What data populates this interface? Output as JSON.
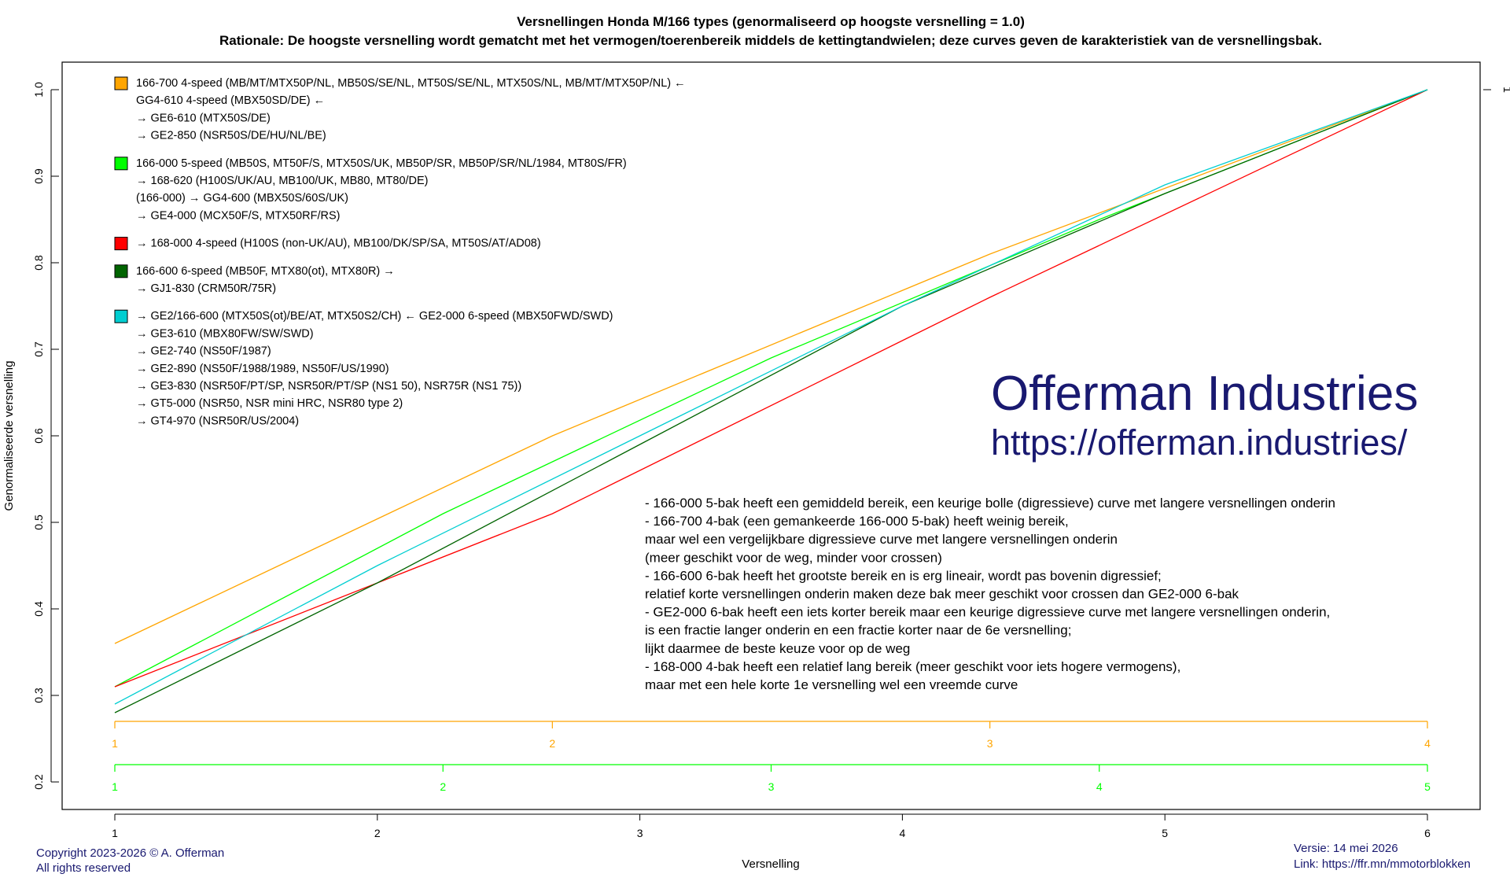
{
  "chart_data": {
    "type": "line",
    "title": "Versnellingen Honda M/166 types (genormaliseerd op hoogste versnelling = 1.0)",
    "subtitle": "Rationale: De hoogste versnelling wordt gematcht met het vermogen/toerenbereik middels de kettingtandwielen; deze curves geven de karakteristiek van de versnellingsbak.",
    "xlabel": "Versnelling",
    "ylabel": "Genormaliseerde versnelling",
    "xlim": [
      1,
      6
    ],
    "ylim": [
      0.2,
      1.0
    ],
    "x_ticks": [
      "1",
      "2",
      "3",
      "4",
      "5",
      "6"
    ],
    "y_ticks": [
      "0.2",
      "0.3",
      "0.4",
      "0.5",
      "0.6",
      "0.7",
      "0.8",
      "0.9",
      "1.0"
    ],
    "right_tick": "1",
    "grid": false,
    "legend_position": "top-left",
    "series": [
      {
        "color": "#FFA500",
        "x": [
          1,
          2.667,
          4.333,
          6
        ],
        "y": [
          0.36,
          0.6,
          0.81,
          1.0
        ]
      },
      {
        "color": "#00FF00",
        "x": [
          1,
          2.25,
          3.5,
          4.75,
          6
        ],
        "y": [
          0.31,
          0.51,
          0.69,
          0.85,
          1.0
        ]
      },
      {
        "color": "#FF0000",
        "x": [
          1,
          2.667,
          4.333,
          6
        ],
        "y": [
          0.31,
          0.51,
          0.76,
          1.0
        ]
      },
      {
        "color": "#006400",
        "x": [
          1,
          2,
          3,
          4,
          5,
          6
        ],
        "y": [
          0.28,
          0.43,
          0.59,
          0.75,
          0.88,
          1.0
        ]
      },
      {
        "color": "#00CED1",
        "x": [
          1,
          2,
          3,
          4,
          5,
          6
        ],
        "y": [
          0.29,
          0.45,
          0.6,
          0.75,
          0.89,
          1.0
        ]
      }
    ],
    "gear_scales": [
      {
        "color": "#FFA500",
        "y": 0.27,
        "labels": [
          "1",
          "2",
          "3",
          "4"
        ]
      },
      {
        "color": "#00FF00",
        "y": 0.22,
        "labels": [
          "1",
          "2",
          "3",
          "4",
          "5"
        ]
      }
    ],
    "legend": [
      {
        "color": "#FFA500",
        "lines": [
          "166-700 4-speed (MB/MT/MTX50P/NL, MB50S/SE/NL, MT50S/SE/NL, MTX50S/NL, MB/MT/MTX50P/NL) ←",
          "GG4-610 4-speed (MBX50SD/DE) ←",
          "→ GE6-610 (MTX50S/DE)",
          "→ GE2-850 (NSR50S/DE/HU/NL/BE)"
        ]
      },
      {
        "color": "#00FF00",
        "lines": [
          "166-000 5-speed (MB50S, MT50F/S, MTX50S/UK, MB50P/SR, MB50P/SR/NL/1984, MT80S/FR)",
          "→ 168-620 (H100S/UK/AU, MB100/UK, MB80, MT80/DE)",
          "(166-000) → GG4-600 (MBX50S/60S/UK)",
          "→ GE4-000 (MCX50F/S, MTX50RF/RS)"
        ]
      },
      {
        "color": "#FF0000",
        "lines": [
          "→ 168-000 4-speed (H100S (non-UK/AU), MB100/DK/SP/SA, MT50S/AT/AD08)"
        ]
      },
      {
        "color": "#006400",
        "lines": [
          "166-600 6-speed (MB50F, MTX80(ot), MTX80R) →",
          "→ GJ1-830 (CRM50R/75R)"
        ]
      },
      {
        "color": "#00CED1",
        "lines": [
          "→ GE2/166-600 (MTX50S(ot)/BE/AT, MTX50S2/CH) ← GE2-000 6-speed (MBX50FWD/SWD)",
          "→ GE3-610 (MBX80FW/SW/SWD)",
          "→ GE2-740 (NS50F/1987)",
          "→ GE2-890 (NS50F/1988/1989, NS50F/US/1990)",
          "→ GE3-830 (NSR50F/PT/SP, NSR50R/PT/SP (NS1 50), NSR75R (NS1 75))",
          "→ GT5-000 (NSR50, NSR mini HRC, NSR80 type 2)",
          "→ GT4-970 (NSR50R/US/2004)"
        ]
      }
    ],
    "watermark": {
      "title": "Offerman Industries",
      "url": "https://offerman.industries/",
      "color": "#191970"
    },
    "notes": [
      "- 166-000 5-bak heeft een gemiddeld bereik, een keurige bolle (digressieve) curve met langere versnellingen onderin",
      "- 166-700 4-bak (een gemankeerde 166-000 5-bak) heeft weinig bereik,",
      "  maar wel een vergelijkbare digressieve curve met langere versnellingen onderin",
      "  (meer geschikt voor de weg, minder voor crossen)",
      "- 166-600 6-bak heeft het grootste bereik en is erg lineair, wordt pas bovenin digressief;",
      "  relatief korte versnellingen onderin maken deze bak meer geschikt voor crossen dan GE2-000 6-bak",
      "- GE2-000 6-bak heeft een iets korter bereik maar een keurige digressieve curve met langere versnellingen onderin,",
      "  is een fractie langer onderin en een fractie korter naar de 6e versnelling;",
      "  lijkt daarmee de beste keuze voor op de weg",
      "- 168-000 4-bak heeft een relatief lang bereik (meer geschikt voor iets hogere vermogens),",
      "  maar met een hele korte 1e versnelling wel een vreemde curve"
    ],
    "footer": {
      "copyright": "Copyright 2023-2026 © A. Offerman",
      "rights": "All rights reserved",
      "version": "Versie: 14 mei 2026",
      "link": "Link: https://ffr.mn/mmotorblokken",
      "color": "#191970"
    }
  }
}
